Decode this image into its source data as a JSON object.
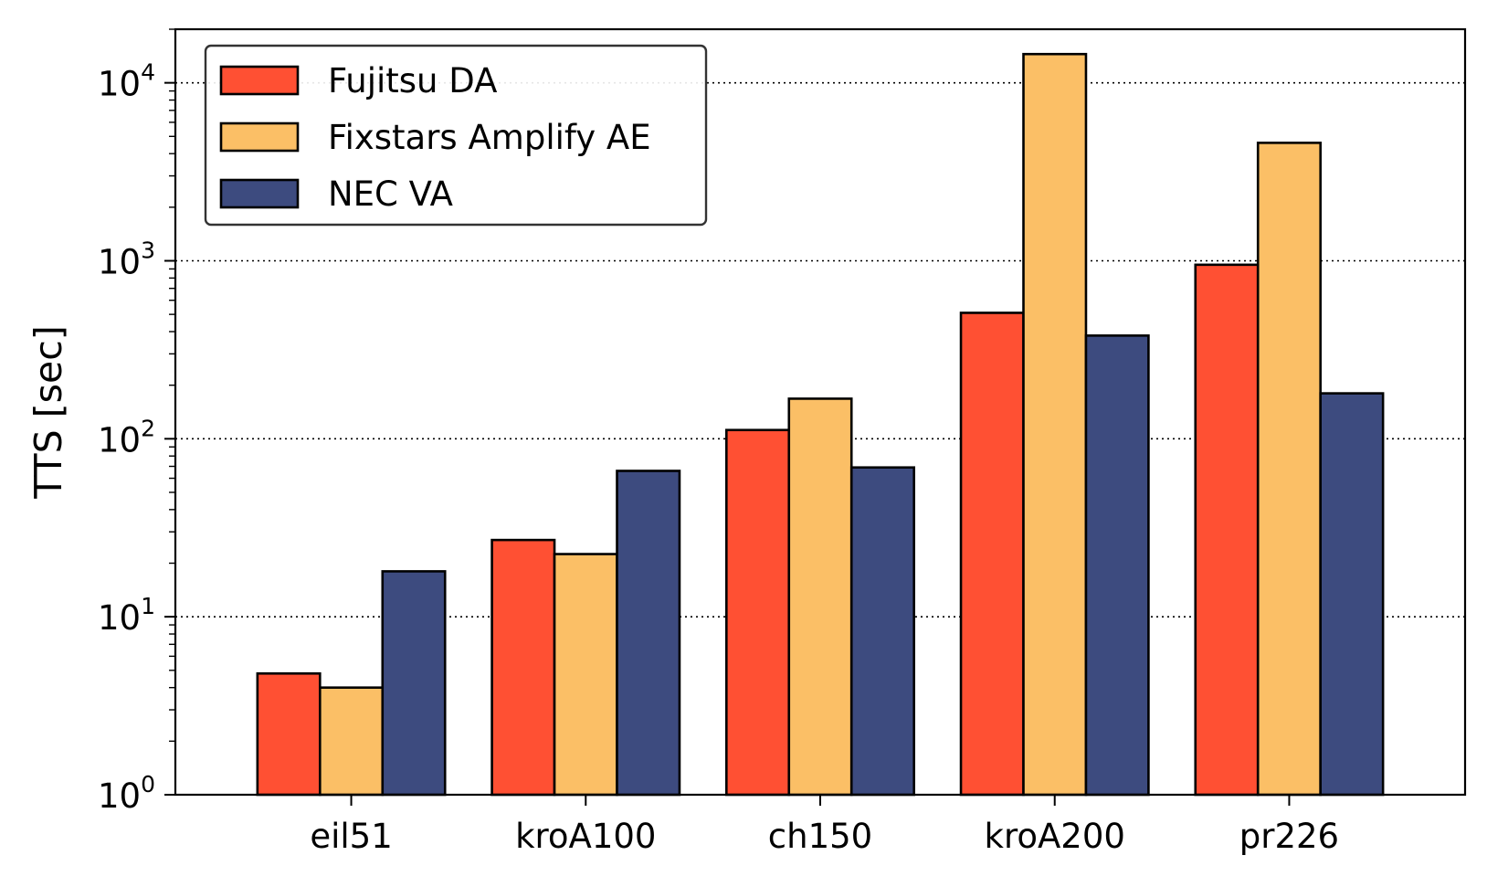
{
  "chart_data": {
    "type": "bar",
    "title": "",
    "xlabel": "",
    "ylabel": "TTS [sec]",
    "y_scale": "log",
    "ylim": [
      1,
      20000
    ],
    "y_ticks": [
      {
        "value": 1,
        "base": "10",
        "exp": "0"
      },
      {
        "value": 10,
        "base": "10",
        "exp": "1"
      },
      {
        "value": 100,
        "base": "10",
        "exp": "2"
      },
      {
        "value": 1000,
        "base": "10",
        "exp": "3"
      },
      {
        "value": 10000,
        "base": "10",
        "exp": "4"
      }
    ],
    "grid": "y-major-dotted",
    "legend_position": "upper-left",
    "categories": [
      "eil51",
      "kroA100",
      "ch150",
      "kroA200",
      "pr226"
    ],
    "series": [
      {
        "name": "Fujitsu DA",
        "color": "#ff5033",
        "values": [
          4.8,
          27,
          112,
          510,
          950
        ]
      },
      {
        "name": "Fixstars Amplify AE",
        "color": "#fbbf66",
        "values": [
          4.0,
          22.5,
          168,
          14500,
          4600
        ]
      },
      {
        "name": "NEC VA",
        "color": "#3d4b7f",
        "values": [
          18,
          66,
          69,
          380,
          180
        ]
      }
    ]
  }
}
